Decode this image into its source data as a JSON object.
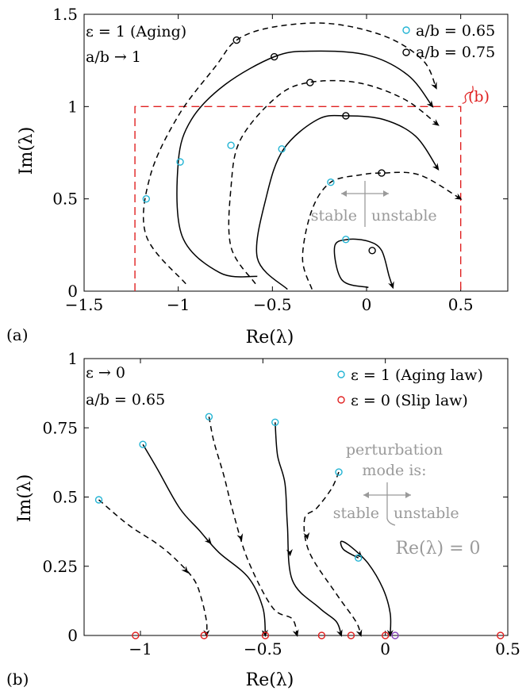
{
  "colors": {
    "cyan": "#22b4d4",
    "black": "#000000",
    "red": "#e02020",
    "grey": "#9a9a9a",
    "purple": "#8844bb"
  },
  "chart_data": [
    {
      "type": "line",
      "panel_label": "(a)",
      "xlabel": "Re(λ)",
      "ylabel": "Im(λ)",
      "xlim": [
        -1.5,
        0.75
      ],
      "ylim": [
        0,
        1.5
      ],
      "xticks": [
        -1.5,
        -1,
        -0.5,
        0,
        0.5
      ],
      "xtick_labels": [
        "−1.5",
        "−1",
        "−0.5",
        "0",
        "0.5"
      ],
      "yticks": [
        0,
        0.5,
        1,
        1.5
      ],
      "ytick_labels": [
        "0",
        "0.5",
        "1",
        "1.5"
      ],
      "annotations": [
        "ε = 1 (Aging)",
        "a/b → 1"
      ],
      "legend": [
        {
          "label": "a/b = 0.65",
          "color": "#22b4d4"
        },
        {
          "label": "a/b = 0.75",
          "color": "#000000"
        }
      ],
      "box_label": "(b)",
      "box": {
        "x": [
          -1.23,
          0.5
        ],
        "y": [
          0,
          1
        ]
      },
      "stability_labels": [
        "stable",
        "unstable"
      ],
      "series": [
        {
          "style": "dashed",
          "arrow": true,
          "points": [
            [
              -0.96,
              0.04
            ],
            [
              -1.17,
              0.3
            ],
            [
              -1.15,
              0.62
            ],
            [
              -1.0,
              0.95
            ],
            [
              -0.8,
              1.22
            ],
            [
              -0.69,
              1.36
            ],
            [
              -0.5,
              1.43
            ],
            [
              -0.2,
              1.45
            ],
            [
              0.1,
              1.38
            ],
            [
              0.3,
              1.25
            ],
            [
              0.37,
              1.1
            ]
          ]
        },
        {
          "style": "solid",
          "arrow": true,
          "points": [
            [
              -0.58,
              0.08
            ],
            [
              -0.78,
              0.1
            ],
            [
              -0.98,
              0.3
            ],
            [
              -1.0,
              0.7
            ],
            [
              -0.93,
              0.93
            ],
            [
              -0.75,
              1.12
            ],
            [
              -0.49,
              1.27
            ],
            [
              -0.3,
              1.3
            ],
            [
              0.0,
              1.28
            ],
            [
              0.22,
              1.17
            ],
            [
              0.35,
              1.0
            ]
          ]
        },
        {
          "style": "dashed",
          "arrow": true,
          "points": [
            [
              -0.59,
              0.04
            ],
            [
              -0.72,
              0.24
            ],
            [
              -0.72,
              0.56
            ],
            [
              -0.67,
              0.82
            ],
            [
              -0.48,
              1.05
            ],
            [
              -0.31,
              1.13
            ],
            [
              -0.05,
              1.13
            ],
            [
              0.2,
              1.04
            ],
            [
              0.38,
              0.9
            ]
          ]
        },
        {
          "style": "solid",
          "arrow": true,
          "points": [
            [
              -0.42,
              0.01
            ],
            [
              -0.58,
              0.18
            ],
            [
              -0.53,
              0.52
            ],
            [
              -0.44,
              0.77
            ],
            [
              -0.26,
              0.93
            ],
            [
              -0.11,
              0.95
            ],
            [
              0.09,
              0.93
            ],
            [
              0.26,
              0.84
            ],
            [
              0.38,
              0.66
            ]
          ]
        },
        {
          "style": "dashed",
          "arrow": true,
          "points": [
            [
              -0.29,
              0.01
            ],
            [
              -0.34,
              0.18
            ],
            [
              -0.29,
              0.44
            ],
            [
              -0.19,
              0.59
            ],
            [
              -0.03,
              0.63
            ],
            [
              0.08,
              0.64
            ],
            [
              0.28,
              0.63
            ],
            [
              0.5,
              0.5
            ]
          ]
        },
        {
          "style": "solid",
          "arrow": true,
          "points": [
            [
              0.01,
              0.02
            ],
            [
              -0.13,
              0.06
            ],
            [
              -0.17,
              0.24
            ],
            [
              -0.1,
              0.28
            ],
            [
              0.01,
              0.27
            ],
            [
              0.08,
              0.22
            ],
            [
              0.12,
              0.08
            ],
            [
              0.14,
              0.02
            ]
          ]
        }
      ],
      "markers": [
        {
          "x": -1.17,
          "y": 0.5,
          "color": "#22b4d4"
        },
        {
          "x": -0.99,
          "y": 0.7,
          "color": "#22b4d4"
        },
        {
          "x": -0.72,
          "y": 0.79,
          "color": "#22b4d4"
        },
        {
          "x": -0.45,
          "y": 0.77,
          "color": "#22b4d4"
        },
        {
          "x": -0.19,
          "y": 0.59,
          "color": "#22b4d4"
        },
        {
          "x": -0.11,
          "y": 0.28,
          "color": "#22b4d4"
        },
        {
          "x": -0.69,
          "y": 1.36,
          "color": "#000000"
        },
        {
          "x": -0.49,
          "y": 1.27,
          "color": "#000000"
        },
        {
          "x": -0.3,
          "y": 1.13,
          "color": "#000000"
        },
        {
          "x": -0.11,
          "y": 0.95,
          "color": "#000000"
        },
        {
          "x": 0.08,
          "y": 0.64,
          "color": "#000000"
        },
        {
          "x": 0.03,
          "y": 0.22,
          "color": "#000000"
        }
      ]
    },
    {
      "type": "line",
      "panel_label": "(b)",
      "xlabel": "Re(λ)",
      "ylabel": "Im(λ)",
      "xlim": [
        -1.23,
        0.5
      ],
      "ylim": [
        0,
        1
      ],
      "xticks": [
        -1,
        -0.5,
        0,
        0.5
      ],
      "xtick_labels": [
        "−1",
        "−0.5",
        "0",
        "0.5"
      ],
      "yticks": [
        0,
        0.25,
        0.5,
        0.75,
        1
      ],
      "ytick_labels": [
        "0",
        "0.25",
        "0.5",
        "0.75",
        "1"
      ],
      "annotations": [
        "ε → 0",
        "a/b = 0.65"
      ],
      "legend": [
        {
          "label": "ε = 1 (Aging law)",
          "color": "#22b4d4"
        },
        {
          "label": "ε = 0 (Slip law)",
          "color": "#e02020"
        }
      ],
      "perturbation_text": [
        "perturbation",
        "mode is:"
      ],
      "stability_labels": [
        "stable",
        "unstable"
      ],
      "zero_label": "Re(λ) = 0",
      "series": [
        {
          "style": "dashed",
          "arrow": true,
          "points": [
            [
              -1.17,
              0.49
            ],
            [
              -1.05,
              0.4
            ],
            [
              -0.93,
              0.33
            ],
            [
              -0.85,
              0.27
            ],
            [
              -0.78,
              0.2
            ],
            [
              -0.75,
              0.13
            ],
            [
              -0.73,
              0.05
            ],
            [
              -0.73,
              0.0
            ]
          ]
        },
        {
          "style": "solid",
          "arrow": true,
          "points": [
            [
              -0.99,
              0.69
            ],
            [
              -0.93,
              0.6
            ],
            [
              -0.84,
              0.46
            ],
            [
              -0.76,
              0.38
            ],
            [
              -0.68,
              0.3
            ],
            [
              -0.56,
              0.21
            ],
            [
              -0.5,
              0.1
            ],
            [
              -0.49,
              0.0
            ]
          ]
        },
        {
          "style": "dashed",
          "arrow": true,
          "points": [
            [
              -0.72,
              0.79
            ],
            [
              -0.7,
              0.7
            ],
            [
              -0.66,
              0.58
            ],
            [
              -0.62,
              0.44
            ],
            [
              -0.56,
              0.27
            ],
            [
              -0.46,
              0.1
            ],
            [
              -0.38,
              0.06
            ],
            [
              -0.36,
              0.0
            ]
          ]
        },
        {
          "style": "solid",
          "arrow": true,
          "points": [
            [
              -0.45,
              0.77
            ],
            [
              -0.44,
              0.65
            ],
            [
              -0.41,
              0.55
            ],
            [
              -0.4,
              0.4
            ],
            [
              -0.38,
              0.2
            ],
            [
              -0.27,
              0.1
            ],
            [
              -0.2,
              0.05
            ],
            [
              -0.18,
              0.0
            ]
          ]
        },
        {
          "style": "dashed",
          "arrow": true,
          "points": [
            [
              -0.19,
              0.59
            ],
            [
              -0.22,
              0.53
            ],
            [
              -0.28,
              0.46
            ],
            [
              -0.33,
              0.42
            ],
            [
              -0.31,
              0.3
            ],
            [
              -0.2,
              0.15
            ],
            [
              -0.12,
              0.05
            ],
            [
              -0.1,
              0.0
            ]
          ]
        },
        {
          "style": "solid",
          "arrow": true,
          "points": [
            [
              -0.11,
              0.28
            ],
            [
              -0.17,
              0.31
            ],
            [
              -0.18,
              0.34
            ],
            [
              -0.14,
              0.32
            ],
            [
              -0.07,
              0.26
            ],
            [
              -0.01,
              0.17
            ],
            [
              0.02,
              0.08
            ],
            [
              0.02,
              0.0
            ]
          ]
        }
      ],
      "markers": [
        {
          "x": -1.17,
          "y": 0.49,
          "color": "#22b4d4"
        },
        {
          "x": -0.99,
          "y": 0.69,
          "color": "#22b4d4"
        },
        {
          "x": -0.72,
          "y": 0.79,
          "color": "#22b4d4"
        },
        {
          "x": -0.45,
          "y": 0.77,
          "color": "#22b4d4"
        },
        {
          "x": -0.19,
          "y": 0.59,
          "color": "#22b4d4"
        },
        {
          "x": -0.11,
          "y": 0.28,
          "color": "#22b4d4"
        },
        {
          "x": -1.02,
          "y": 0.0,
          "color": "#e02020"
        },
        {
          "x": -0.74,
          "y": 0.0,
          "color": "#e02020"
        },
        {
          "x": -0.49,
          "y": 0.0,
          "color": "#e02020"
        },
        {
          "x": -0.26,
          "y": 0.0,
          "color": "#e02020"
        },
        {
          "x": -0.14,
          "y": 0.0,
          "color": "#e02020"
        },
        {
          "x": 0.0,
          "y": 0.0,
          "color": "#e02020"
        },
        {
          "x": 0.04,
          "y": 0.0,
          "color": "#8844bb"
        },
        {
          "x": 0.47,
          "y": 0.0,
          "color": "#e02020"
        }
      ]
    }
  ]
}
